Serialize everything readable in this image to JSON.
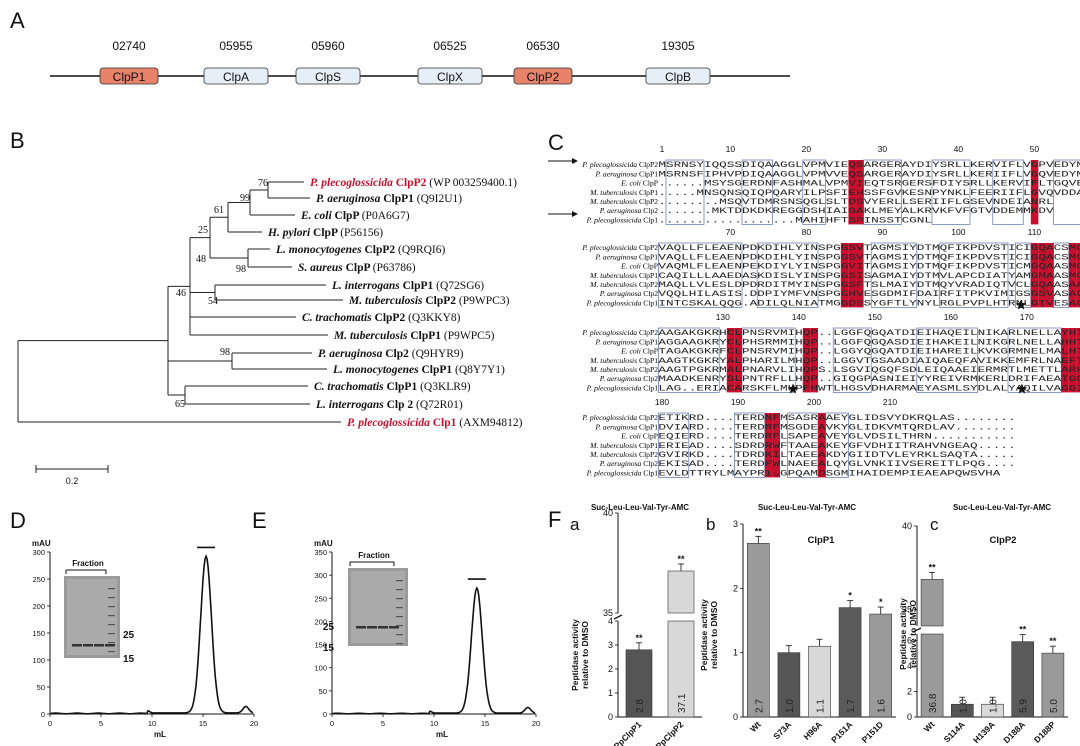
{
  "panels": {
    "A": "A",
    "B": "B",
    "C": "C",
    "D": "D",
    "E": "E",
    "F": "F",
    "Fa": "a",
    "Fb": "b",
    "Fc": "c"
  },
  "colors": {
    "highlight": "#e8826a",
    "gene": "#e6eef7",
    "red": "#c8102e",
    "dark": "#555555"
  },
  "genomeMap": {
    "ids": [
      "02740",
      "05955",
      "05960",
      "06525",
      "06530",
      "19305"
    ],
    "genes": [
      {
        "label": "ClpP1",
        "highlight": true
      },
      {
        "label": "ClpA",
        "highlight": false
      },
      {
        "label": "ClpS",
        "highlight": false
      },
      {
        "label": "ClpX",
        "highlight": false
      },
      {
        "label": "ClpP2",
        "highlight": true
      },
      {
        "label": "ClpB",
        "highlight": false
      }
    ]
  },
  "tree": {
    "leaves": [
      {
        "species": "P. plecoglossicida",
        "gene": "ClpP2",
        "acc": "(WP 003259400.1)",
        "red": true
      },
      {
        "species": "P. aeruginosa",
        "gene": "ClpP1",
        "acc": "(Q9I2U1)",
        "red": false
      },
      {
        "species": "E. coli",
        "gene": "ClpP",
        "acc": "(P0A6G7)",
        "red": false
      },
      {
        "species": "H. pylori",
        "gene": "ClpP",
        "acc": "(P56156)",
        "red": false
      },
      {
        "species": "L. monocytogenes",
        "gene": "ClpP2",
        "acc": "(Q9RQI6)",
        "red": false
      },
      {
        "species": "S. aureus",
        "gene": "ClpP",
        "acc": "(P63786)",
        "red": false
      },
      {
        "species": "L. interrogans",
        "gene": "ClpP1",
        "acc": "(Q72SG6)",
        "red": false
      },
      {
        "species": "M. tuberculosis",
        "gene": "ClpP2",
        "acc": "(P9WPC3)",
        "red": false
      },
      {
        "species": "C. trachomatis",
        "gene": "ClpP2",
        "acc": "(Q3KKY8)",
        "red": false
      },
      {
        "species": "M. tuberculosis",
        "gene": "ClpP1",
        "acc": "(P9WPC5)",
        "red": false
      },
      {
        "species": "P. aeruginosa",
        "gene": "Clp2",
        "acc": "(Q9HYR9)",
        "red": false
      },
      {
        "species": "L. monocytogenes",
        "gene": "ClpP1",
        "acc": "(Q8Y7Y1)",
        "red": false
      },
      {
        "species": "C. trachomatis",
        "gene": "ClpP1",
        "acc": "(Q3KLR9)",
        "red": false
      },
      {
        "species": "L. interrogans",
        "gene": "Clp 2",
        "acc": "(Q72R01)",
        "red": false
      },
      {
        "species": "P. plecoglossicida",
        "gene": "Clp1",
        "acc": "(AXM94812)",
        "red": true
      }
    ],
    "bootstraps": [
      "76",
      "99",
      "61",
      "25",
      "48",
      "98",
      "46",
      "54",
      "98",
      "65"
    ],
    "scale": "0.2"
  },
  "alignment": {
    "species": [
      "P. plecoglossicida ClpP2",
      "P. aeruginosa ClpP1",
      "E. coli ClpP",
      "M. tuberculosis ClpP1",
      "M. tuberculosis ClpP2",
      "P. aeruginosa Clp2",
      "P. plecoglossicida Clp1"
    ],
    "blocks": [
      {
        "numbers": [
          {
            "v": "1",
            "col": 0
          },
          {
            "v": "10",
            "col": 9
          },
          {
            "v": "20",
            "col": 19
          },
          {
            "v": "30",
            "col": 29
          },
          {
            "v": "40",
            "col": 39
          },
          {
            "v": "50",
            "col": 49
          },
          {
            "v": "60",
            "col": 59
          }
        ],
        "rows": [
          "MSRNSYIQQSSDIQAAGGLVPMVIEQSARGERAYDIYSRLLKERVIFLVGPVEDYMANLV",
          "MSRNSFIPHVPDIQAAGGLVPMVVEQSARGERAYDIYSRLLKERIIFLVGQVEDYMANLV",
          "......MSYSGERDNFASHMALVPMVIEQTSRGERSFDIYSRLLKERVIFLTGQVEDHMANLI",
          ".....MNSQNSQIQPQARYILPSFIEHSSFGVKESNPYNKLFEERIIFLGVQVDDASANDI",
          "........MSQVTDMRSNSQGLSLTDSVYERLLSERIIFLGSEVNDEIANRL",
          ".......MKTDDKDKREGGDSHIAIGAKLMEYALKRVKFVFGTVDDEMMKDV",
          "..................MAHIHFTSPINSSTCGNL"
        ]
      },
      {
        "numbers": [
          {
            "v": "70",
            "col": 9
          },
          {
            "v": "80",
            "col": 19
          },
          {
            "v": "90",
            "col": 29
          },
          {
            "v": "100",
            "col": 39
          },
          {
            "v": "110",
            "col": 49
          },
          {
            "v": "120",
            "col": 59
          }
        ],
        "rows": [
          "VAQLLFLEAENPDKDIHLYINSPGGSVTAGMSIYDTMQFIKPDVSTICIGQACSMGALLL",
          "VAQLLFLEAENPDKDIHLYINSPGGSVTAGMSIYDTMQFIKPDVSTICIGQACSMGALLL",
          "VAQMLFLEAENPEKDIYLYINSPGGVITAGMSIYDTMQFIKPDVSTICMGQAASMGAFLL",
          "CAQILLLAAEDASKDISLYINSPGGSISAGMAIYDTMVLAPCDIATYAMGMAASMGEFLL",
          "MAQLLVLESLDPDRDITMYINSPGGSFTSLMAIYDTMQYVRADIQTVCLGQAASAAAVLL",
          "VQQLHILASIS.DDPIYMFVNSPGGHVESGDMIFDAIRFITPKVIMIGSGSVASAGALIY",
          "INTCSKALQQG.ADILQLNIATMGGDESYGFTLYNYLRGLPVPLHTRNLGTVESAGNILF"
        ]
      },
      {
        "numbers": [
          {
            "v": "130",
            "col": 8
          },
          {
            "v": "140",
            "col": 18
          },
          {
            "v": "150",
            "col": 28
          },
          {
            "v": "160",
            "col": 38
          },
          {
            "v": "170",
            "col": 48
          }
        ],
        "rows": [
          "AAGAKGKRHCLPNSRVMIHQP..LGGFQGQATDIEIHAQEILNIKARLNELLAYHTGQDL",
          "AGGAAGKRYCLPHSRMMIHQP..LGGFQGQASDIEIHAKEILNIKGRLNELLAHHTGQSL",
          "TAGAKGKRFCLPNSRVMIHQP..LGGYQGQATDIEIHAREILKVKGRMNELMALHTGQSL",
          "AAGTKGKRYALPHARILMHQP..LGGVTGSAADIAIQAEQFAVIKKEMFRLNAEFTGQPI",
          "AAGTPGKRMALPNARVLIHQPS.LSGVIQGQFSDLEIQAAEIERMRTLMETTLARHTGKDA",
          "MAADKENRYSLPNTRFLLHQP..GIQGPASNIEIYYREIVRMKERLDRIFAEATGQTP",
          "LAG..ERIACARSKFLMHPFHWTLHGSVDHARMAEYASMLSYDLALYAQILVAGGISI"
        ]
      },
      {
        "numbers": [
          {
            "v": "180",
            "col": 0
          },
          {
            "v": "190",
            "col": 10
          },
          {
            "v": "200",
            "col": 20
          },
          {
            "v": "210",
            "col": 30
          }
        ],
        "rows": [
          "ETIKRD....TERDNFMSASRAAEYGLIDSVYDKRQLAS........",
          "DVIARD....TERDRFMSGDEAVKYGLIDKVMTQRDLAV........",
          "EQIERD....TERDRFLSAPEAVEYGLVDSILTHRN...........",
          "ERIEAD....SDRDRWFTAAEAKEYGFVDHIITRAHVNGEAQ.....",
          "GVIRKD....TDRDKILTAEEAKDYGIIDTVLEYRKLSAQTA.....",
          "EKISAD....TERDFWLNAEEALQYGLVNKIIVSEREITLPQG....",
          "EVLDTTRYLMAYPRILGPQAMDSGMIHAIDEMPIEAEAPQWSVHA"
        ]
      }
    ],
    "sample_marks": [
      {
        "v": "*"
      },
      {
        "v": "*"
      },
      {
        "v": "*"
      },
      {
        "v": "*"
      }
    ]
  },
  "chromD": {
    "ylabel": "mAU",
    "xlabel": "mL",
    "ticks_y": [
      "0",
      "50",
      "100",
      "150",
      "200",
      "250",
      "300"
    ],
    "ticks_x": [
      "0",
      "5",
      "10",
      "15",
      "20"
    ],
    "gel_label": "Fraction",
    "markers": [
      "25",
      "15"
    ]
  },
  "chromE": {
    "ylabel": "mAU",
    "xlabel": "mL",
    "ticks_y": [
      "0",
      "50",
      "100",
      "150",
      "200",
      "250",
      "300",
      "350"
    ],
    "ticks_x": [
      "0",
      "5",
      "10",
      "15",
      "20"
    ],
    "gel_label": "Fraction",
    "markers": [
      "25",
      "15"
    ]
  },
  "chart_data": [
    {
      "type": "bar",
      "title": "Suc-Leu-Leu-Val-Tyr-AMC",
      "ylabel": "Peptidase activity relative to DMSO",
      "categories": [
        "PpClpP1",
        "PpClpP2"
      ],
      "values": [
        2.8,
        37.1
      ],
      "value_labels": [
        "2.8",
        "37.1"
      ],
      "significance": [
        "**",
        "**"
      ],
      "yticks_low": [
        "0",
        "1",
        "2",
        "3",
        "4"
      ],
      "yticks_high": [
        "35",
        "40"
      ],
      "ylim": [
        0,
        40
      ],
      "axis_break": [
        4,
        35
      ]
    },
    {
      "type": "bar",
      "title": "Suc-Leu-Leu-Val-Tyr-AMC",
      "subtitle": "ClpP1",
      "ylabel": "Peptidase activity relative to DMSO",
      "categories": [
        "Wt",
        "S73A",
        "H96A",
        "P151A",
        "P151D"
      ],
      "values": [
        2.7,
        1.0,
        1.1,
        1.7,
        1.6
      ],
      "value_labels": [
        "2.7",
        "1.0",
        "1.1",
        "1.7",
        "1.6"
      ],
      "significance": [
        "**",
        "",
        "",
        "*",
        "*"
      ],
      "yticks": [
        "0",
        "1",
        "2",
        "3"
      ],
      "ylim": [
        0,
        3
      ]
    },
    {
      "type": "bar",
      "title": "Suc-Leu-Leu-Val-Tyr-AMC",
      "subtitle": "ClpP2",
      "ylabel": "Peptidase activity relative to DMSO",
      "categories": [
        "Wt",
        "S114A",
        "H139A",
        "D188A",
        "D188P"
      ],
      "values": [
        36.8,
        1.0,
        1.0,
        5.9,
        5.0
      ],
      "value_labels": [
        "36.8",
        "1.0",
        "1.0",
        "5.9",
        "5.0"
      ],
      "significance": [
        "**",
        "",
        "",
        "**",
        "**"
      ],
      "yticks_low": [
        "0",
        "2",
        "4",
        "6"
      ],
      "yticks_high": [
        "35",
        "40"
      ],
      "ylim": [
        0,
        40
      ],
      "axis_break": [
        6.5,
        34
      ]
    }
  ]
}
